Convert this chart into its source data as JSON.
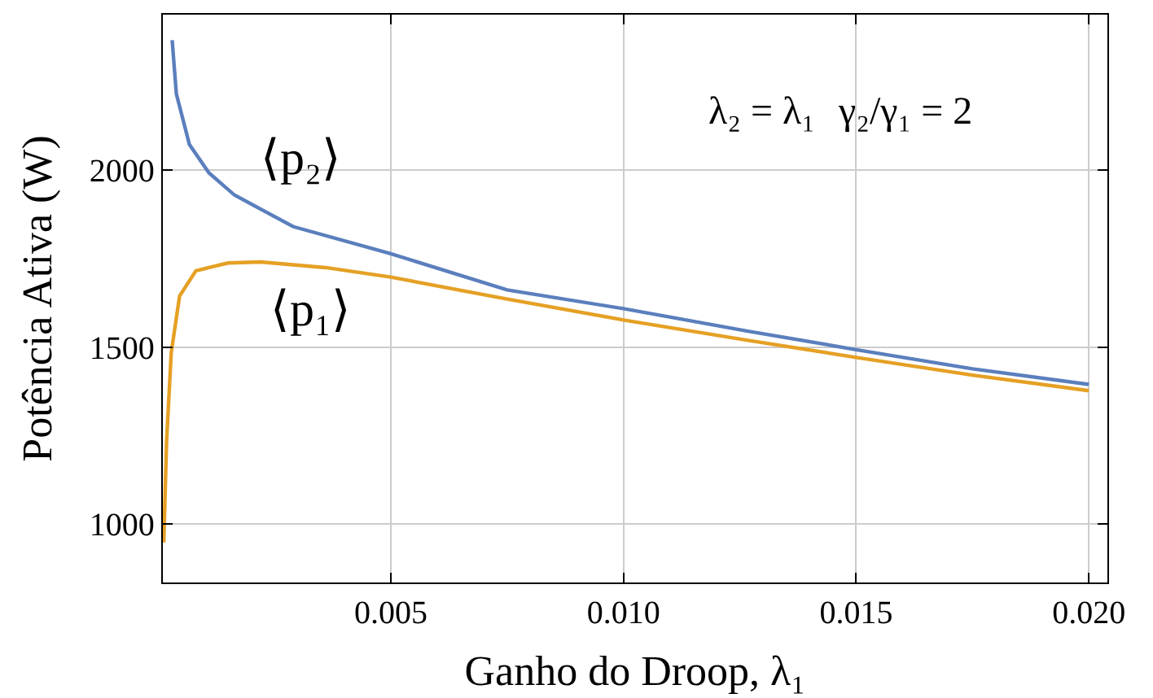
{
  "chart_data": {
    "type": "line",
    "xlabel": "Ganho do Droop, λ₁",
    "ylabel": "Potência Ativa (W)",
    "xlim": [
      0.0001,
      0.0204
    ],
    "xticks": [
      {
        "value": 0.005,
        "label": "0.005"
      },
      {
        "value": 0.01,
        "label": "0.010"
      },
      {
        "value": 0.015,
        "label": "0.015"
      },
      {
        "value": 0.02,
        "label": "0.020"
      }
    ],
    "ylim": [
      835,
      2440
    ],
    "yticks": [
      1000,
      1500,
      2000
    ],
    "grid": true,
    "series": [
      {
        "color": "#5b7fbd",
        "x": [
          0.0003,
          0.00039,
          0.00067,
          0.00109,
          0.00164,
          0.0029,
          0.005,
          0.0075,
          0.01,
          0.01265,
          0.015,
          0.0175,
          0.02
        ],
        "values": [
          2368,
          2216,
          2073,
          1993,
          1930,
          1841,
          1764,
          1662,
          1609,
          1546,
          1493,
          1439,
          1395
        ]
      },
      {
        "color": "#e5a024",
        "x": [
          0.00012,
          0.00018,
          0.00028,
          0.00046,
          0.00081,
          0.0015,
          0.0022,
          0.0036,
          0.005,
          0.0075,
          0.01,
          0.01265,
          0.015,
          0.0175,
          0.02
        ],
        "values": [
          948,
          1234,
          1484,
          1645,
          1716,
          1738,
          1741,
          1725,
          1698,
          1636,
          1577,
          1520,
          1471,
          1421,
          1377
        ]
      }
    ],
    "annotations": [
      "⟨p₂⟩",
      "⟨p₁⟩",
      "λ₂ = λ₁",
      "γ₂/γ₁ = 2"
    ]
  }
}
